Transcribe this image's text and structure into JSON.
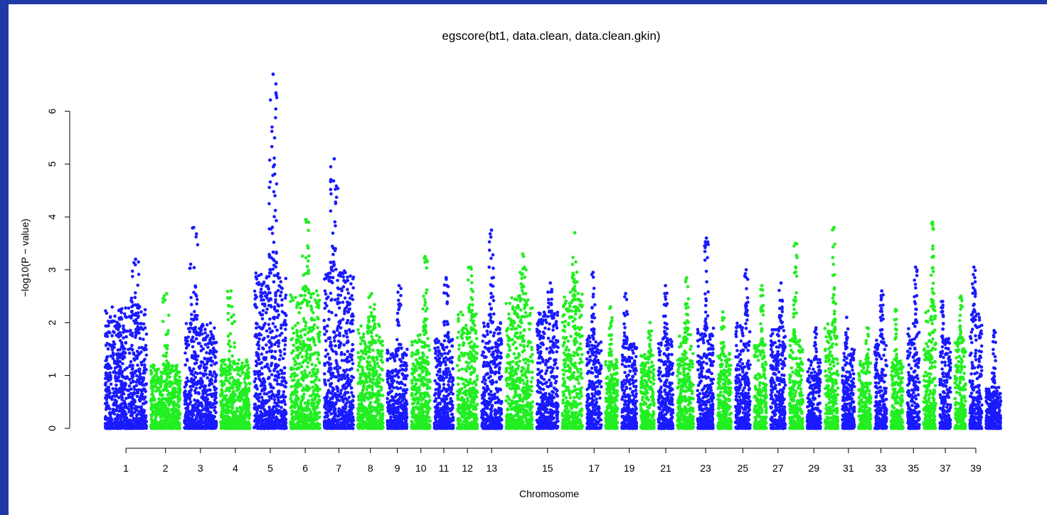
{
  "chart_data": {
    "type": "scatter",
    "title": "egscore(bt1, data.clean, data.clean.gkin)",
    "xlabel": "Chromosome",
    "ylabel": "−log10(P − value)",
    "ylim": [
      0,
      6.7
    ],
    "yticks": [
      0,
      1,
      2,
      3,
      4,
      5,
      6
    ],
    "colors": {
      "odd": "#1a1aff",
      "even": "#22ee22"
    },
    "x_tick_labels": [
      "1",
      "2",
      "3",
      "4",
      "5",
      "6",
      "7",
      "8",
      "9",
      "10",
      "11",
      "12",
      "13",
      "15",
      "17",
      "19",
      "21",
      "23",
      "25",
      "27",
      "29",
      "31",
      "33",
      "35",
      "37",
      "39"
    ],
    "chromosomes": [
      {
        "chr": 1,
        "peak": 3.2,
        "base": 2.3,
        "color": "odd"
      },
      {
        "chr": 2,
        "peak": 2.55,
        "base": 1.2,
        "color": "even"
      },
      {
        "chr": 3,
        "peak": 3.8,
        "base": 2.0,
        "color": "odd"
      },
      {
        "chr": 4,
        "peak": 2.6,
        "base": 1.3,
        "color": "even"
      },
      {
        "chr": 5,
        "peak": 6.7,
        "base": 3.0,
        "color": "odd"
      },
      {
        "chr": 6,
        "peak": 3.95,
        "base": 2.6,
        "color": "even"
      },
      {
        "chr": 7,
        "peak": 5.1,
        "base": 3.0,
        "color": "odd"
      },
      {
        "chr": 8,
        "peak": 2.55,
        "base": 2.0,
        "color": "even"
      },
      {
        "chr": 9,
        "peak": 2.7,
        "base": 1.5,
        "color": "odd"
      },
      {
        "chr": 10,
        "peak": 3.25,
        "base": 1.8,
        "color": "even"
      },
      {
        "chr": 11,
        "peak": 2.85,
        "base": 1.7,
        "color": "odd"
      },
      {
        "chr": 12,
        "peak": 3.05,
        "base": 2.2,
        "color": "even"
      },
      {
        "chr": 13,
        "peak": 3.75,
        "base": 2.0,
        "color": "odd"
      },
      {
        "chr": 14,
        "peak": 3.3,
        "base": 2.5,
        "color": "even"
      },
      {
        "chr": 15,
        "peak": 2.75,
        "base": 2.2,
        "color": "odd"
      },
      {
        "chr": 16,
        "peak": 3.7,
        "base": 2.6,
        "color": "even"
      },
      {
        "chr": 17,
        "peak": 2.95,
        "base": 1.8,
        "color": "odd"
      },
      {
        "chr": 18,
        "peak": 2.3,
        "base": 1.3,
        "color": "even"
      },
      {
        "chr": 19,
        "peak": 2.55,
        "base": 1.6,
        "color": "odd"
      },
      {
        "chr": 20,
        "peak": 2.0,
        "base": 1.4,
        "color": "even"
      },
      {
        "chr": 21,
        "peak": 2.7,
        "base": 1.7,
        "color": "odd"
      },
      {
        "chr": 22,
        "peak": 2.85,
        "base": 1.8,
        "color": "even"
      },
      {
        "chr": 23,
        "peak": 3.6,
        "base": 1.9,
        "color": "odd"
      },
      {
        "chr": 24,
        "peak": 2.2,
        "base": 1.5,
        "color": "even"
      },
      {
        "chr": 25,
        "peak": 3.0,
        "base": 2.0,
        "color": "odd"
      },
      {
        "chr": 26,
        "peak": 2.7,
        "base": 1.6,
        "color": "even"
      },
      {
        "chr": 27,
        "peak": 2.75,
        "base": 1.9,
        "color": "odd"
      },
      {
        "chr": 28,
        "peak": 3.5,
        "base": 1.7,
        "color": "even"
      },
      {
        "chr": 29,
        "peak": 1.9,
        "base": 1.3,
        "color": "odd"
      },
      {
        "chr": 30,
        "peak": 3.8,
        "base": 2.0,
        "color": "even"
      },
      {
        "chr": 31,
        "peak": 2.1,
        "base": 1.5,
        "color": "odd"
      },
      {
        "chr": 32,
        "peak": 1.9,
        "base": 1.3,
        "color": "even"
      },
      {
        "chr": 33,
        "peak": 2.6,
        "base": 1.7,
        "color": "odd"
      },
      {
        "chr": 34,
        "peak": 2.25,
        "base": 1.3,
        "color": "even"
      },
      {
        "chr": 35,
        "peak": 3.05,
        "base": 2.0,
        "color": "odd"
      },
      {
        "chr": 36,
        "peak": 3.9,
        "base": 2.3,
        "color": "even"
      },
      {
        "chr": 37,
        "peak": 2.4,
        "base": 1.7,
        "color": "odd"
      },
      {
        "chr": 38,
        "peak": 2.5,
        "base": 1.7,
        "color": "even"
      },
      {
        "chr": 39,
        "peak": 3.05,
        "base": 2.2,
        "color": "odd"
      },
      {
        "chr": 40,
        "peak": 1.85,
        "base": 0.8,
        "color": "odd"
      }
    ]
  }
}
